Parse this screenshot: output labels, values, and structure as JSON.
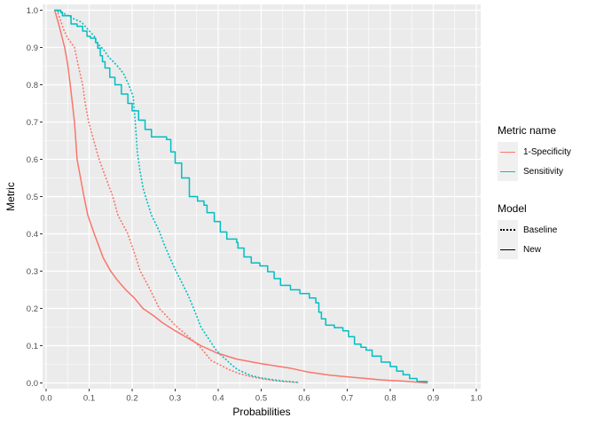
{
  "figure": {
    "panel_bg": "#EBEBEB",
    "grid_color": "#FFFFFF",
    "tick_color": "#333333",
    "axis_text_color": "#4D4D4D",
    "axis_title_color": "#000000",
    "legend_key_bg": "#F0F0F0"
  },
  "chart_data": {
    "type": "line",
    "title": "",
    "xlabel": "Probabilities",
    "ylabel": "Metric",
    "xlim": [
      0,
      1
    ],
    "ylim": [
      0,
      1
    ],
    "x_tick_labels": [
      "0.0",
      "0.1",
      "0.2",
      "0.3",
      "0.4",
      "0.5",
      "0.6",
      "0.7",
      "0.8",
      "0.9",
      "1.0"
    ],
    "y_tick_labels": [
      "0.0",
      "0.1",
      "0.2",
      "0.3",
      "0.4",
      "0.5",
      "0.6",
      "0.7",
      "0.8",
      "0.9",
      "1.0"
    ],
    "grid": "major and minor, white on grey panel",
    "legend_position": "right",
    "series": [
      {
        "name": "1-Specificity",
        "model": "Baseline",
        "color": "#F8766D",
        "linetype": "dotted",
        "interpolation": "linear",
        "points": [
          [
            0.025,
            1.0
          ],
          [
            0.033,
            0.975
          ],
          [
            0.04,
            0.95
          ],
          [
            0.05,
            0.925
          ],
          [
            0.066,
            0.9
          ],
          [
            0.075,
            0.85
          ],
          [
            0.085,
            0.8
          ],
          [
            0.091,
            0.75
          ],
          [
            0.099,
            0.7
          ],
          [
            0.111,
            0.65
          ],
          [
            0.123,
            0.6
          ],
          [
            0.139,
            0.55
          ],
          [
            0.155,
            0.5
          ],
          [
            0.167,
            0.45
          ],
          [
            0.19,
            0.4
          ],
          [
            0.205,
            0.35
          ],
          [
            0.219,
            0.3
          ],
          [
            0.242,
            0.25
          ],
          [
            0.263,
            0.2
          ],
          [
            0.3,
            0.155
          ],
          [
            0.33,
            0.125
          ],
          [
            0.355,
            0.1
          ],
          [
            0.37,
            0.08
          ],
          [
            0.384,
            0.06
          ],
          [
            0.405,
            0.048
          ],
          [
            0.425,
            0.036
          ],
          [
            0.449,
            0.025
          ],
          [
            0.477,
            0.017
          ],
          [
            0.504,
            0.011
          ],
          [
            0.532,
            0.006
          ],
          [
            0.56,
            0.003
          ],
          [
            0.59,
            0.001
          ]
        ]
      },
      {
        "name": "Sensitivity",
        "model": "Baseline",
        "color": "#00BFC4",
        "linetype": "dotted",
        "interpolation": "linear",
        "points": [
          [
            0.02,
            1.0
          ],
          [
            0.032,
            0.995
          ],
          [
            0.047,
            0.988
          ],
          [
            0.062,
            0.978
          ],
          [
            0.082,
            0.968
          ],
          [
            0.1,
            0.945
          ],
          [
            0.112,
            0.93
          ],
          [
            0.12,
            0.91
          ],
          [
            0.133,
            0.895
          ],
          [
            0.145,
            0.875
          ],
          [
            0.158,
            0.86
          ],
          [
            0.17,
            0.845
          ],
          [
            0.18,
            0.83
          ],
          [
            0.192,
            0.8
          ],
          [
            0.202,
            0.77
          ],
          [
            0.206,
            0.72
          ],
          [
            0.209,
            0.67
          ],
          [
            0.212,
            0.62
          ],
          [
            0.218,
            0.57
          ],
          [
            0.226,
            0.52
          ],
          [
            0.234,
            0.49
          ],
          [
            0.245,
            0.45
          ],
          [
            0.262,
            0.41
          ],
          [
            0.275,
            0.37
          ],
          [
            0.29,
            0.33
          ],
          [
            0.302,
            0.3
          ],
          [
            0.316,
            0.268
          ],
          [
            0.33,
            0.235
          ],
          [
            0.343,
            0.2
          ],
          [
            0.36,
            0.15
          ],
          [
            0.377,
            0.12
          ],
          [
            0.394,
            0.09
          ],
          [
            0.405,
            0.076
          ],
          [
            0.417,
            0.064
          ],
          [
            0.43,
            0.05
          ],
          [
            0.445,
            0.036
          ],
          [
            0.46,
            0.028
          ],
          [
            0.476,
            0.02
          ],
          [
            0.497,
            0.014
          ],
          [
            0.525,
            0.009
          ],
          [
            0.553,
            0.005
          ],
          [
            0.585,
            0.002
          ]
        ]
      },
      {
        "name": "1-Specificity",
        "model": "New",
        "color": "#F8766D",
        "linetype": "solid",
        "interpolation": "linear",
        "points": [
          [
            0.02,
            1.0
          ],
          [
            0.03,
            0.96
          ],
          [
            0.043,
            0.9
          ],
          [
            0.05,
            0.855
          ],
          [
            0.056,
            0.8
          ],
          [
            0.061,
            0.75
          ],
          [
            0.066,
            0.7
          ],
          [
            0.069,
            0.65
          ],
          [
            0.072,
            0.6
          ],
          [
            0.08,
            0.55
          ],
          [
            0.088,
            0.5
          ],
          [
            0.097,
            0.45
          ],
          [
            0.112,
            0.4
          ],
          [
            0.125,
            0.36
          ],
          [
            0.133,
            0.335
          ],
          [
            0.15,
            0.3
          ],
          [
            0.165,
            0.277
          ],
          [
            0.185,
            0.25
          ],
          [
            0.205,
            0.228
          ],
          [
            0.225,
            0.2
          ],
          [
            0.25,
            0.18
          ],
          [
            0.27,
            0.162
          ],
          [
            0.3,
            0.14
          ],
          [
            0.33,
            0.12
          ],
          [
            0.36,
            0.1
          ],
          [
            0.398,
            0.08
          ],
          [
            0.443,
            0.064
          ],
          [
            0.5,
            0.052
          ],
          [
            0.566,
            0.04
          ],
          [
            0.61,
            0.029
          ],
          [
            0.66,
            0.021
          ],
          [
            0.704,
            0.016
          ],
          [
            0.745,
            0.012
          ],
          [
            0.78,
            0.008
          ],
          [
            0.83,
            0.005
          ],
          [
            0.886,
            0.0
          ]
        ]
      },
      {
        "name": "Sensitivity",
        "model": "New",
        "color": "#00BFC4",
        "linetype": "solid",
        "interpolation": "step",
        "points": [
          [
            0.02,
            1.0
          ],
          [
            0.034,
            0.995
          ],
          [
            0.038,
            0.985
          ],
          [
            0.054,
            0.985
          ],
          [
            0.058,
            0.963
          ],
          [
            0.072,
            0.957
          ],
          [
            0.085,
            0.944
          ],
          [
            0.095,
            0.93
          ],
          [
            0.103,
            0.925
          ],
          [
            0.115,
            0.913
          ],
          [
            0.12,
            0.898
          ],
          [
            0.126,
            0.878
          ],
          [
            0.131,
            0.862
          ],
          [
            0.137,
            0.845
          ],
          [
            0.148,
            0.82
          ],
          [
            0.16,
            0.8
          ],
          [
            0.175,
            0.775
          ],
          [
            0.19,
            0.75
          ],
          [
            0.2,
            0.73
          ],
          [
            0.215,
            0.705
          ],
          [
            0.23,
            0.68
          ],
          [
            0.245,
            0.66
          ],
          [
            0.28,
            0.653
          ],
          [
            0.29,
            0.62
          ],
          [
            0.3,
            0.59
          ],
          [
            0.315,
            0.55
          ],
          [
            0.333,
            0.5
          ],
          [
            0.352,
            0.488
          ],
          [
            0.367,
            0.477
          ],
          [
            0.374,
            0.457
          ],
          [
            0.391,
            0.433
          ],
          [
            0.405,
            0.405
          ],
          [
            0.42,
            0.386
          ],
          [
            0.443,
            0.377
          ],
          [
            0.446,
            0.362
          ],
          [
            0.46,
            0.338
          ],
          [
            0.477,
            0.322
          ],
          [
            0.497,
            0.314
          ],
          [
            0.515,
            0.298
          ],
          [
            0.53,
            0.28
          ],
          [
            0.545,
            0.262
          ],
          [
            0.568,
            0.25
          ],
          [
            0.59,
            0.24
          ],
          [
            0.612,
            0.228
          ],
          [
            0.627,
            0.215
          ],
          [
            0.634,
            0.19
          ],
          [
            0.64,
            0.172
          ],
          [
            0.65,
            0.155
          ],
          [
            0.67,
            0.148
          ],
          [
            0.69,
            0.14
          ],
          [
            0.703,
            0.124
          ],
          [
            0.717,
            0.104
          ],
          [
            0.732,
            0.096
          ],
          [
            0.744,
            0.088
          ],
          [
            0.758,
            0.072
          ],
          [
            0.779,
            0.056
          ],
          [
            0.8,
            0.044
          ],
          [
            0.815,
            0.032
          ],
          [
            0.83,
            0.022
          ],
          [
            0.845,
            0.012
          ],
          [
            0.862,
            0.004
          ],
          [
            0.886,
            0.0
          ]
        ]
      }
    ]
  },
  "legend": {
    "metric": {
      "title": "Metric name",
      "items": [
        {
          "label": "1-Specificity",
          "color": "#F8766D",
          "linetype": "solid"
        },
        {
          "label": "Sensitivity",
          "color": "#00BFC4",
          "linetype": "solid"
        }
      ]
    },
    "model": {
      "title": "Model",
      "items": [
        {
          "label": "Baseline",
          "color": "#000000",
          "linetype": "dotted"
        },
        {
          "label": "New",
          "color": "#000000",
          "linetype": "solid"
        }
      ]
    }
  }
}
